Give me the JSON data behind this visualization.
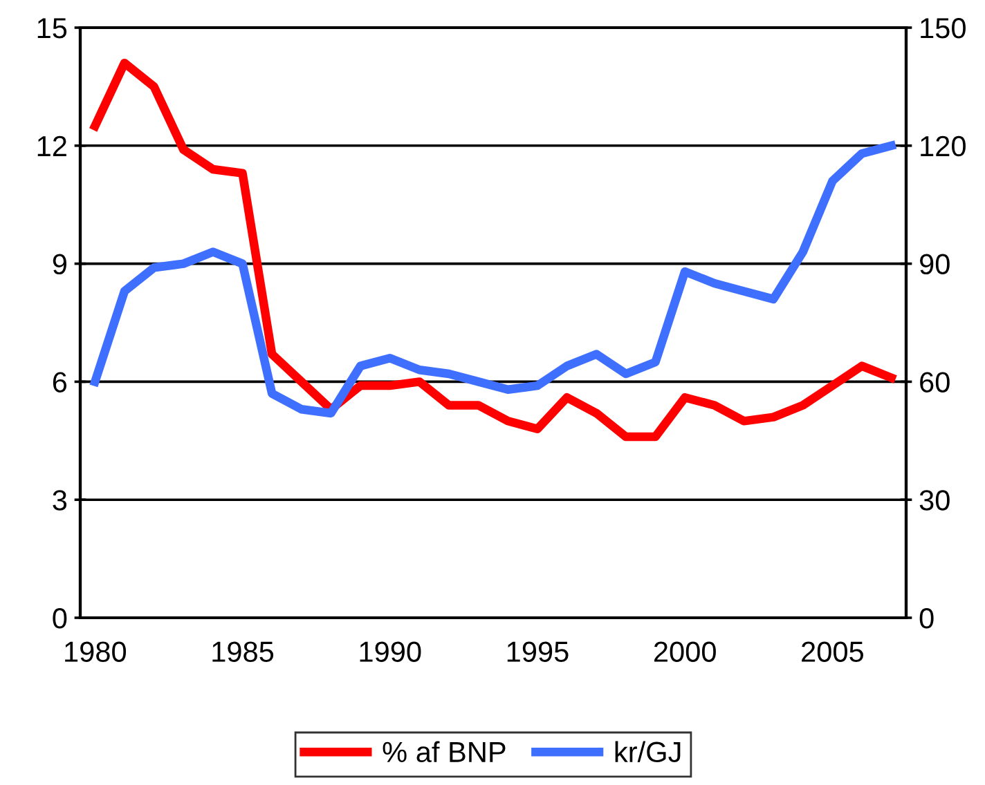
{
  "chart_data": {
    "type": "line",
    "categories": [
      "1980",
      null,
      null,
      null,
      null,
      "1985",
      null,
      null,
      null,
      null,
      "1990",
      null,
      null,
      null,
      null,
      "1995",
      null,
      null,
      null,
      null,
      "2000",
      null,
      null,
      null,
      null,
      "2005",
      null,
      null
    ],
    "series": [
      {
        "name": "% af BNP",
        "color": "#ff0000",
        "values": [
          12.5,
          14.1,
          13.5,
          11.9,
          11.4,
          11.3,
          6.7,
          6.0,
          5.3,
          5.9,
          5.9,
          6.0,
          5.4,
          5.4,
          5.0,
          4.8,
          5.6,
          5.2,
          4.6,
          4.6,
          5.6,
          5.4,
          5.0,
          5.1,
          5.4,
          5.9,
          6.4,
          6.1
        ]
      },
      {
        "name": "kr/GJ",
        "color": "#3f6fff",
        "axis": "y2",
        "values": [
          60,
          83,
          89,
          90,
          93,
          90,
          57,
          53,
          52,
          64,
          66,
          63,
          62,
          60,
          58,
          59,
          64,
          67,
          62,
          65,
          88,
          85,
          83,
          81,
          93,
          111,
          118,
          120
        ]
      }
    ],
    "ylim": [
      0,
      15
    ],
    "yticks": [
      0,
      3,
      6,
      9,
      12,
      15
    ],
    "y2lim": [
      0,
      150
    ],
    "y2ticks": [
      0,
      30,
      60,
      90,
      120,
      150
    ],
    "grid": "y",
    "legend": "bottom",
    "marker": "none",
    "line_style": "solid"
  }
}
